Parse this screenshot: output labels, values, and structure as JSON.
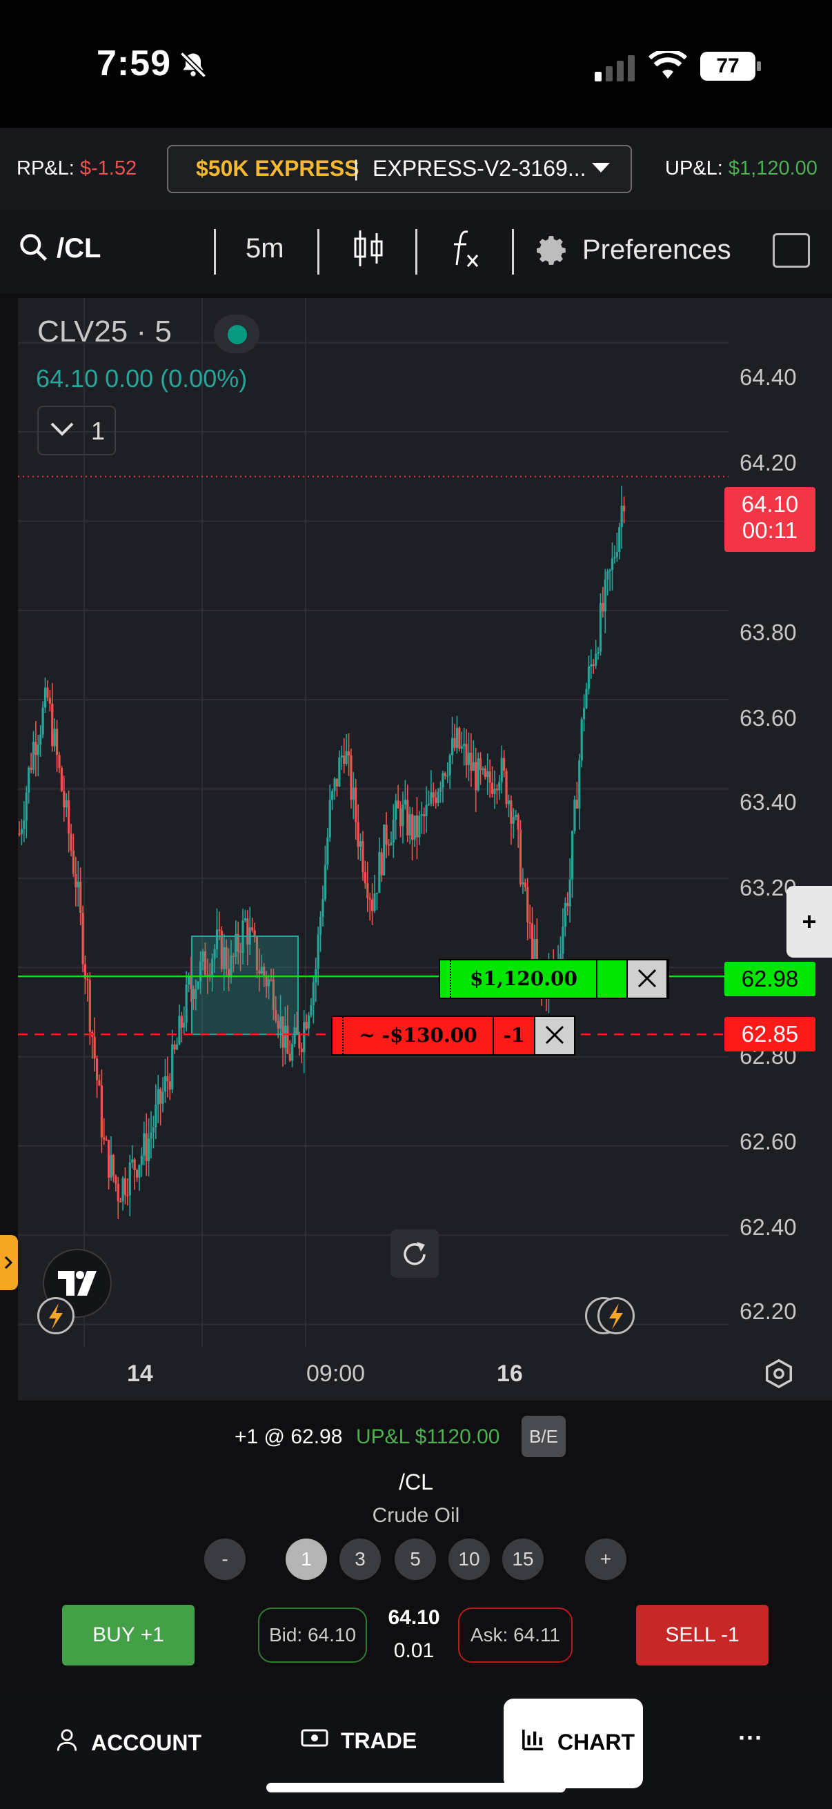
{
  "status_bar": {
    "time": "7:59",
    "battery": "77"
  },
  "account_bar": {
    "rpl_label": "RP&L:",
    "rpl_value": "$-1.52",
    "account_name": "$50K EXPRESS",
    "account_sep": "|",
    "account_id": "EXPRESS-V2-3169...",
    "upl_label": "UP&L:",
    "upl_value": "$1,120.00"
  },
  "toolbar": {
    "symbol": "/CL",
    "interval": "5m",
    "preferences_label": "Preferences"
  },
  "chart": {
    "symbol_title": "CLV25 · 5",
    "quote": "64.10  0.00 (0.00%)",
    "collapse_count": "1",
    "price_axis": [
      "64.40",
      "64.20",
      "63.80",
      "63.60",
      "63.40",
      "63.20",
      "62.80",
      "62.60",
      "62.40",
      "62.20"
    ],
    "last_price_tag": "64.10",
    "countdown_tag": "00:11",
    "entry_price_tag": "62.98",
    "stop_price_tag": "62.85",
    "position_pnl": "$1,120.00",
    "position_qty": "1",
    "stop_pnl": "~ -$130.00",
    "stop_qty": "-1",
    "time_axis": [
      "14",
      "09:00",
      "16"
    ],
    "colors": {
      "up": "#26a69a",
      "down": "#ef5350",
      "entry": "#00e600",
      "stop": "#ff1a1a"
    }
  },
  "chart_data": {
    "type": "candlestick",
    "title": "CLV25 · 5",
    "x_ticks": [
      "14",
      "09:00",
      "16"
    ],
    "ylim": [
      62.15,
      64.5
    ],
    "y_ticks": [
      64.4,
      64.2,
      63.8,
      63.6,
      63.4,
      63.2,
      62.8,
      62.6,
      62.4,
      62.2
    ],
    "last_price": 64.1,
    "entry_price": 62.98,
    "stop_price": 62.85,
    "close_series": [
      63.3,
      63.5,
      63.6,
      63.4,
      63.2,
      62.9,
      62.6,
      62.5,
      62.55,
      62.6,
      62.7,
      62.8,
      62.95,
      63.0,
      63.05,
      63.0,
      63.1,
      63.0,
      62.95,
      62.8,
      62.85,
      63.0,
      63.35,
      63.5,
      63.3,
      63.15,
      63.3,
      63.35,
      63.3,
      63.35,
      63.45,
      63.5,
      63.45,
      63.4,
      63.45,
      63.35,
      63.1,
      62.95,
      63.0,
      63.2,
      63.6,
      63.75,
      63.9,
      64.1
    ],
    "grid": true
  },
  "position": {
    "summary": "+1 @ 62.98",
    "upl": "UP&L $1120.00",
    "be_label": "B/E",
    "symbol": "/CL",
    "name": "Crude Oil"
  },
  "quantities": {
    "minus": "-",
    "plus": "+",
    "options": [
      "1",
      "3",
      "5",
      "10",
      "15"
    ]
  },
  "trade": {
    "buy_label": "BUY +1",
    "bid": "Bid: 64.10",
    "last": "64.10",
    "spread": "0.01",
    "ask": "Ask: 64.11",
    "sell_label": "SELL -1"
  },
  "nav": {
    "account": "ACCOUNT",
    "trade": "TRADE",
    "chart": "CHART",
    "more": "···"
  }
}
